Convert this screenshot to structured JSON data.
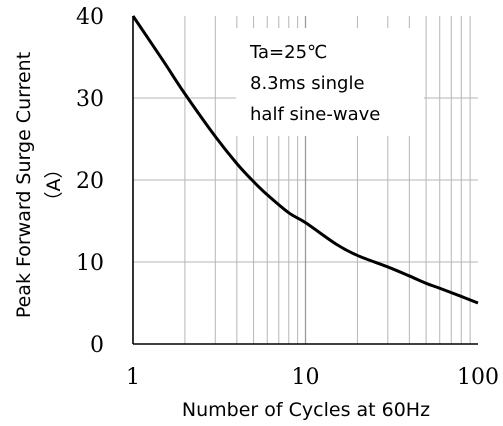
{
  "chart_data": {
    "type": "line",
    "title": "",
    "xlabel": "Number of Cycles at 60Hz",
    "ylabel": "Peak Forward Surge Current",
    "yunit": "（A）",
    "xscale": "log",
    "xlim": [
      1,
      100
    ],
    "ylim": [
      0,
      40
    ],
    "grid": true,
    "x_ticks": [
      "1",
      "10",
      "100"
    ],
    "y_ticks": [
      "0",
      "10",
      "20",
      "30",
      "40"
    ],
    "annotation": [
      "Ta=25℃",
      "8.3ms single",
      "half sine-wave"
    ],
    "series": [
      {
        "x": [
          1,
          1.5,
          2,
          3,
          4,
          5,
          6,
          8,
          10,
          15,
          20,
          30,
          40,
          50,
          60,
          80,
          100
        ],
        "y": [
          40,
          34.5,
          30.5,
          25.3,
          22,
          19.8,
          18.2,
          16.0,
          14.8,
          12.2,
          10.8,
          9.4,
          8.3,
          7.4,
          6.8,
          5.8,
          5.0
        ],
        "color": "#000000"
      }
    ]
  }
}
